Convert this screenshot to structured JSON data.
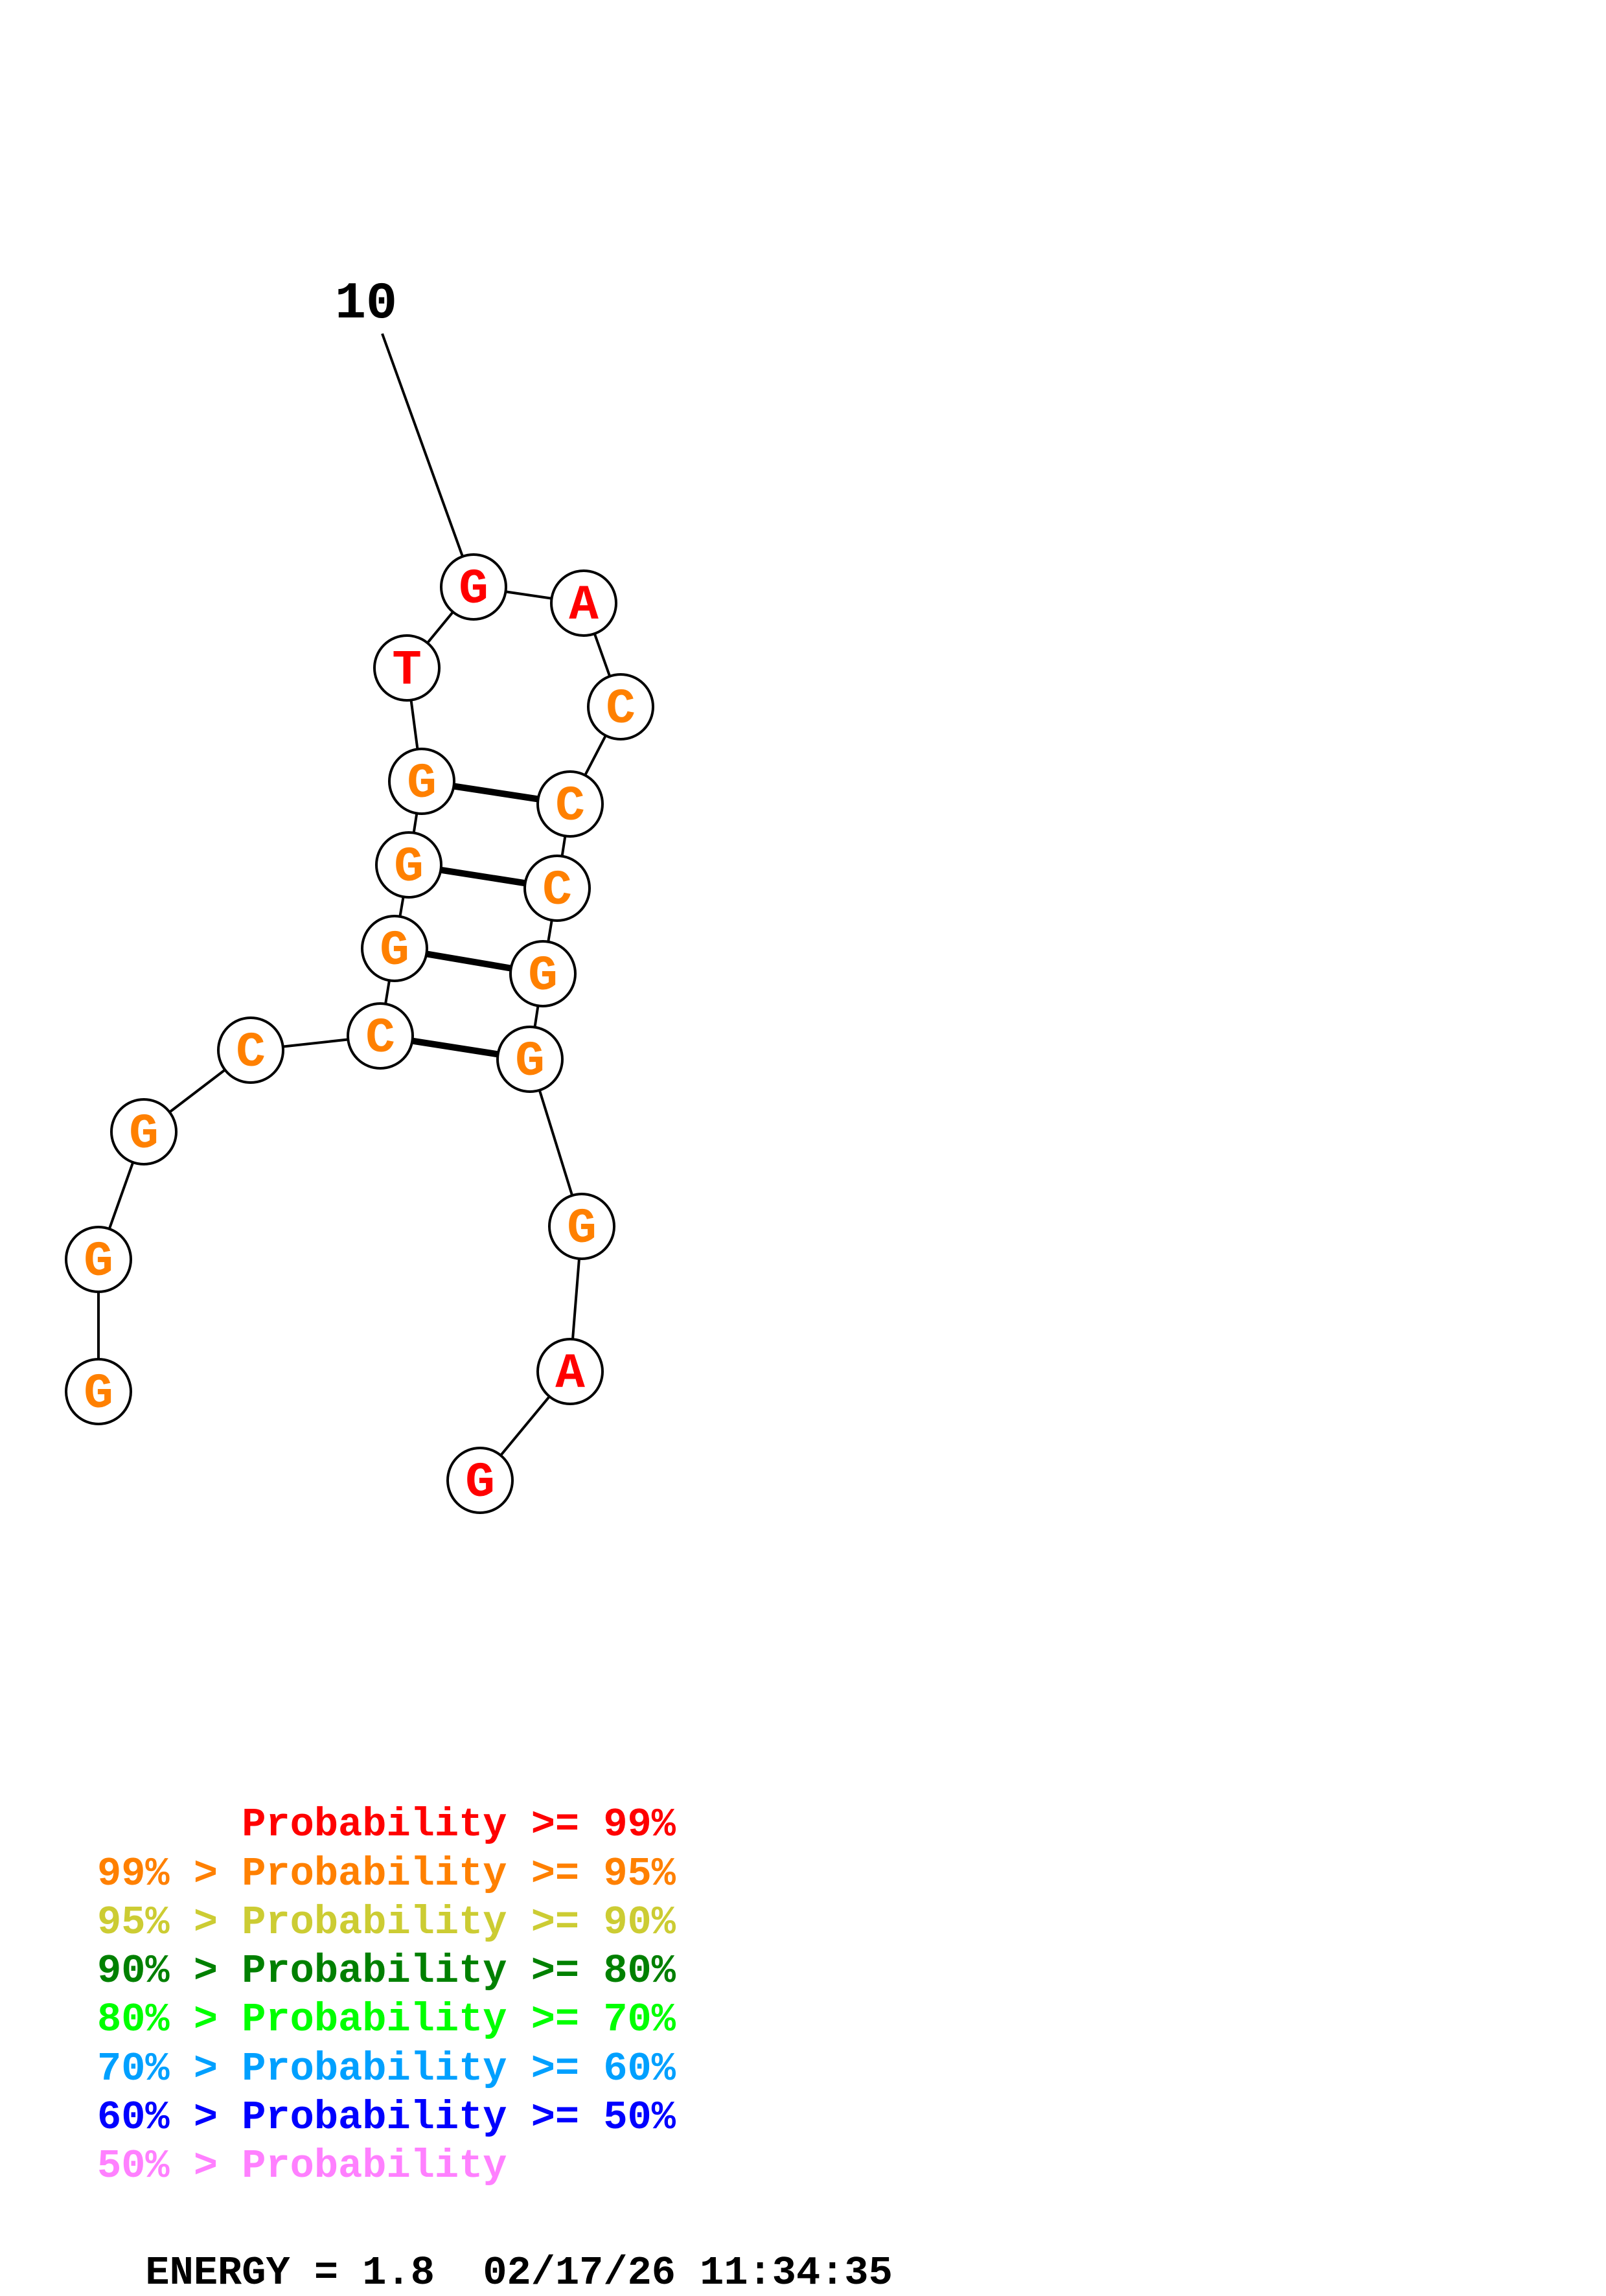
{
  "structure": {
    "position_label": "10",
    "nucleotides": [
      {
        "base": "G",
        "prob_class": "red"
      },
      {
        "base": "A",
        "prob_class": "red"
      },
      {
        "base": "C",
        "prob_class": "orange"
      },
      {
        "base": "C",
        "prob_class": "orange"
      },
      {
        "base": "C",
        "prob_class": "orange"
      },
      {
        "base": "G",
        "prob_class": "orange"
      },
      {
        "base": "G",
        "prob_class": "orange"
      },
      {
        "base": "G",
        "prob_class": "orange"
      },
      {
        "base": "A",
        "prob_class": "red"
      },
      {
        "base": "G",
        "prob_class": "red"
      },
      {
        "base": "G",
        "prob_class": "orange"
      },
      {
        "base": "G",
        "prob_class": "orange"
      },
      {
        "base": "G",
        "prob_class": "orange"
      },
      {
        "base": "C",
        "prob_class": "orange"
      },
      {
        "base": "C",
        "prob_class": "orange"
      },
      {
        "base": "G",
        "prob_class": "orange"
      },
      {
        "base": "G",
        "prob_class": "orange"
      },
      {
        "base": "G",
        "prob_class": "orange"
      },
      {
        "base": "T",
        "prob_class": "red"
      }
    ],
    "base_pairs": [
      [
        2,
        6
      ],
      [
        3,
        5
      ],
      [
        4,
        4
      ],
      [
        5,
        3
      ]
    ]
  },
  "colors": {
    "red": "#ff0000",
    "orange": "#ff8000",
    "yellow": "#cccc33",
    "darkgreen": "#008000",
    "green": "#00ff00",
    "blue_light": "#00a0ff",
    "blue": "#0000ff",
    "pink": "#ff80ff",
    "black": "#000000"
  },
  "legend": [
    {
      "prefix": "",
      "label": "Probability",
      "suffix": ">= 99%",
      "color": "#ff0000"
    },
    {
      "prefix": "99% >",
      "label": "Probability",
      "suffix": ">= 95%",
      "color": "#ff8000"
    },
    {
      "prefix": "95% >",
      "label": "Probability",
      "suffix": ">= 90%",
      "color": "#cccc33"
    },
    {
      "prefix": "90% >",
      "label": "Probability",
      "suffix": ">= 80%",
      "color": "#008000"
    },
    {
      "prefix": "80% >",
      "label": "Probability",
      "suffix": ">= 70%",
      "color": "#00ff00"
    },
    {
      "prefix": "70% >",
      "label": "Probability",
      "suffix": ">= 60%",
      "color": "#00a0ff"
    },
    {
      "prefix": "60% >",
      "label": "Probability",
      "suffix": ">= 50%",
      "color": "#0000ff"
    },
    {
      "prefix": "50% >",
      "label": "Probability",
      "suffix": "",
      "color": "#ff80ff"
    }
  ],
  "footer": {
    "energy": "ENERGY = 1.8",
    "timestamp": "02/17/26 11:34:35"
  }
}
